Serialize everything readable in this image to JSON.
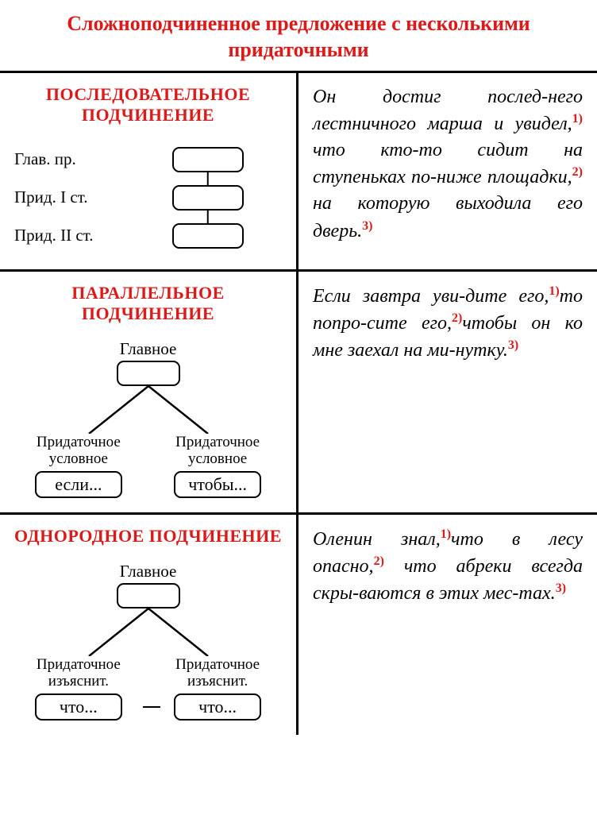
{
  "colors": {
    "accent": "#dd1a1a",
    "border": "#000000",
    "background": "#ffffff",
    "text": "#000000"
  },
  "title": "Сложноподчиненное предложение с несколькими придаточными",
  "sections": [
    {
      "heading": "ПОСЛЕДОВАТЕЛЬНОЕ ПОДЧИНЕНИЕ",
      "diagram": {
        "type": "sequential",
        "levels": [
          "Глав. пр.",
          "Прид. I ст.",
          "Прид. II ст."
        ]
      },
      "example_html": "Он достиг послед-него лестничного марша и увидел,<sup>1)</sup> что кто-то сидит на ступеньках по-ниже площадки,<sup>2)</sup> на которую выходила его дверь.<sup>3)</sup>"
    },
    {
      "heading": "ПАРАЛЛЕЛЬНОЕ ПОДЧИНЕНИЕ",
      "diagram": {
        "type": "tree",
        "root_label": "Главное",
        "children": [
          {
            "label": "Придаточное условное",
            "box": "если..."
          },
          {
            "label": "Придаточное условное",
            "box": "чтобы..."
          }
        ],
        "child_link": false
      },
      "example_html": "Если завтра уви-дите его,<sup>1)</sup>то попро-сите его,<sup>2)</sup>чтобы он ко мне заехал на ми-нутку.<sup>3)</sup>"
    },
    {
      "heading": "ОДНОРОДНОЕ ПОДЧИНЕНИЕ",
      "diagram": {
        "type": "tree",
        "root_label": "Главное",
        "children": [
          {
            "label": "Придаточное изъяснит.",
            "box": "что..."
          },
          {
            "label": "Придаточное изъяснит.",
            "box": "что..."
          }
        ],
        "child_link": true
      },
      "example_html": "Оленин знал,<sup>1)</sup>что в лесу опасно,<sup>2)</sup> что абреки всегда скры-ваются в этих мес-тах.<sup>3)</sup>"
    }
  ]
}
